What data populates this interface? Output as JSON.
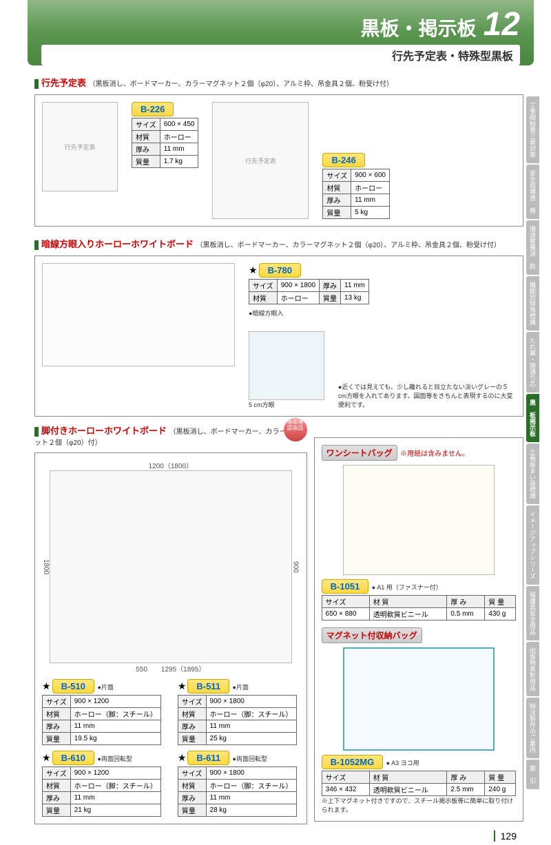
{
  "header": {
    "title": "黒板・掲示板",
    "number": "12",
    "subtitle": "行先予定表・特殊型黒板"
  },
  "section1": {
    "name": "行先予定表",
    "desc": "（黒板消し、ボードマーカー、カラーマグネット２個（φ20）、アルミ枠、吊金具２個、粉受け付）",
    "products": [
      {
        "code": "B-226",
        "specs": [
          [
            "サイズ",
            "600 × 450"
          ],
          [
            "材質",
            "ホーロー"
          ],
          [
            "厚み",
            "11 mm"
          ],
          [
            "質量",
            "1.7 kg"
          ]
        ]
      },
      {
        "code": "B-246",
        "specs": [
          [
            "サイズ",
            "900 × 600"
          ],
          [
            "材質",
            "ホーロー"
          ],
          [
            "厚み",
            "11 mm"
          ],
          [
            "質量",
            "5 kg"
          ]
        ]
      }
    ]
  },
  "section2": {
    "name": "暗線方眼入りホーローホワイトボード",
    "desc": "（黒板消し、ボードマーカー、カラーマグネット２個（φ20）、アルミ枠、吊金具２個、粉受け付）",
    "product": {
      "code": "B-780",
      "specs": [
        [
          "サイズ",
          "900 × 1800",
          "厚み",
          "11 mm"
        ],
        [
          "材質",
          "ホーロー",
          "質量",
          "13 kg"
        ]
      ],
      "note1": "●暗線方眼入",
      "detail_label": "5 cm方眼",
      "note2": "●近くでは見えても、少し離れると目立たない淡いグレーの５cm方眼を入れてあります。図面等をきちんと表現するのに大変便利です。"
    }
  },
  "section3": {
    "name": "脚付きホーローホワイトボード",
    "desc": "（黒板消し、ボードマーカー、カラーマグネット２個（φ20）付）",
    "badge": "納期確認商品",
    "dims": {
      "w": "1200（1800）",
      "h": "900",
      "total_h": "1800",
      "d": "550",
      "total_w": "1295（1895）"
    },
    "products": [
      {
        "code": "B-510",
        "variant": "●片面",
        "specs": [
          [
            "サイズ",
            "900 × 1200"
          ],
          [
            "材質",
            "ホーロー（脚：スチール）"
          ],
          [
            "厚み",
            "11 mm"
          ],
          [
            "質量",
            "19.5 kg"
          ]
        ]
      },
      {
        "code": "B-511",
        "variant": "●片面",
        "specs": [
          [
            "サイズ",
            "900 × 1800"
          ],
          [
            "材質",
            "ホーロー（脚：スチール）"
          ],
          [
            "厚み",
            "11 mm"
          ],
          [
            "質量",
            "25 kg"
          ]
        ]
      },
      {
        "code": "B-610",
        "variant": "●両面回転型",
        "specs": [
          [
            "サイズ",
            "900 × 1200"
          ],
          [
            "材質",
            "ホーロー（脚：スチール）"
          ],
          [
            "厚み",
            "11 mm"
          ],
          [
            "質量",
            "21 kg"
          ]
        ]
      },
      {
        "code": "B-611",
        "variant": "●両面回転型",
        "specs": [
          [
            "サイズ",
            "900 × 1800"
          ],
          [
            "材質",
            "ホーロー（脚：スチール）"
          ],
          [
            "厚み",
            "11 mm"
          ],
          [
            "質量",
            "28 kg"
          ]
        ]
      }
    ]
  },
  "section4": {
    "name": "ワンシートバッグ",
    "note": "※用紙は含みません。",
    "product": {
      "code": "B-1051",
      "variant": "● A1 用（ファスナー付）",
      "headers": [
        "サイズ",
        "材 質",
        "厚 み",
        "質 量"
      ],
      "values": [
        "650 × 880",
        "透明軟質ビニール",
        "0.5 mm",
        "430 g"
      ]
    }
  },
  "section5": {
    "name": "マグネット付収納バッグ",
    "product": {
      "code": "B-1052MG",
      "variant": "● A3 ヨコ用",
      "headers": [
        "サイズ",
        "材 質",
        "厚 み",
        "質 量"
      ],
      "values": [
        "346 × 432",
        "透明軟質ビニール",
        "2.5 mm",
        "240 g"
      ],
      "note": "※上下マグネット付きですので、スチール掲示板等に簡単に取り付けられます。"
    }
  },
  "tabs": [
    [
      "工事開始",
      "第三者対策"
    ],
    [
      "安全指導",
      "資　格"
    ],
    [
      "環境整備",
      "消　防"
    ],
    [
      "機能別",
      "特殊標識"
    ],
    [
      "たれ幕・旗",
      "通り芯"
    ],
    [
      "黒　板",
      "掲示板"
    ],
    [
      "立看板",
      "まい道標識"
    ],
    [
      "イメージアップ",
      "シリーズ"
    ],
    [
      "保護具",
      "安全用品"
    ],
    [
      "出版物",
      "表彰用品"
    ],
    [
      "特注製作の",
      "ご案内"
    ],
    [
      "索　引",
      ""
    ]
  ],
  "page_num": "129"
}
